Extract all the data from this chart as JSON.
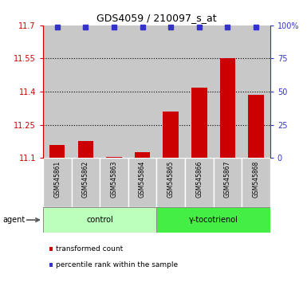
{
  "title": "GDS4059 / 210097_s_at",
  "samples": [
    "GSM545861",
    "GSM545862",
    "GSM545863",
    "GSM545864",
    "GSM545865",
    "GSM545866",
    "GSM545867",
    "GSM545868"
  ],
  "bar_values": [
    11.16,
    11.175,
    11.105,
    11.125,
    11.31,
    11.42,
    11.55,
    11.385
  ],
  "dot_percentile": 99,
  "bar_color": "#cc0000",
  "dot_color": "#3333cc",
  "ylim_left": [
    11.1,
    11.7
  ],
  "ylim_right": [
    0,
    100
  ],
  "yticks_left": [
    11.1,
    11.25,
    11.4,
    11.55,
    11.7
  ],
  "yticks_right": [
    0,
    25,
    50,
    75,
    100
  ],
  "ytick_labels_left": [
    "11.1",
    "11.25",
    "11.4",
    "11.55",
    "11.7"
  ],
  "ytick_labels_right": [
    "0",
    "25",
    "50",
    "75",
    "100%"
  ],
  "grid_values": [
    11.25,
    11.4,
    11.55
  ],
  "agent_label": "agent",
  "groups": [
    {
      "label": "control",
      "indices": [
        0,
        1,
        2,
        3
      ],
      "color": "#bbffbb"
    },
    {
      "label": "γ-tocotrienol",
      "indices": [
        4,
        5,
        6,
        7
      ],
      "color": "#44ee44"
    }
  ],
  "legend": [
    {
      "color": "#cc0000",
      "label": "transformed count"
    },
    {
      "color": "#3333cc",
      "label": "percentile rank within the sample"
    }
  ],
  "bar_width": 0.55,
  "bar_baseline": 11.1,
  "tick_color_left": "#cc0000",
  "tick_color_right": "#3333cc",
  "col_bg_color": "#c8c8c8",
  "background_color": "#ffffff"
}
